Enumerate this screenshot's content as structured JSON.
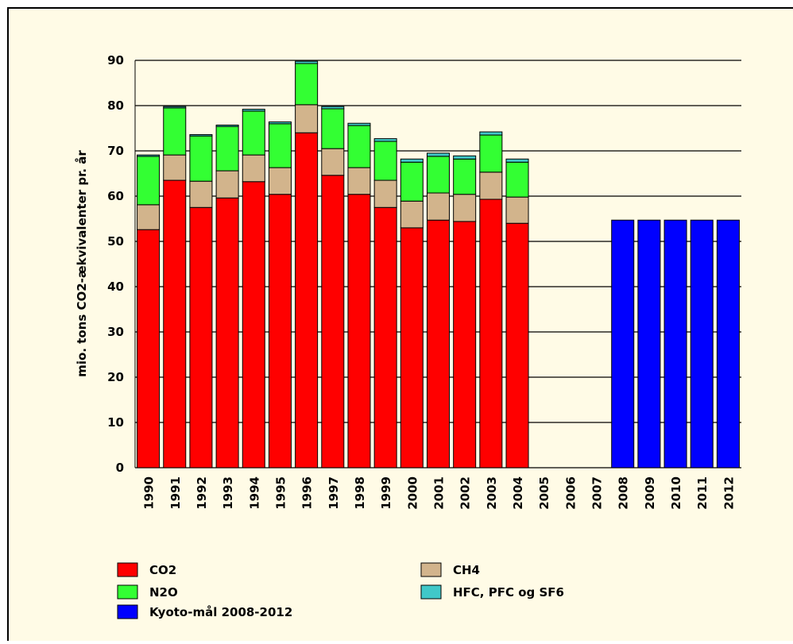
{
  "chart_data": {
    "type": "bar",
    "stacked": true,
    "y_label": "mio. tons CO2-ækvivalenter pr. år",
    "categories": [
      "1990",
      "1991",
      "1992",
      "1993",
      "1994",
      "1995",
      "1996",
      "1997",
      "1998",
      "1999",
      "2000",
      "2001",
      "2002",
      "2003",
      "2004",
      "2005",
      "2006",
      "2007",
      "2008",
      "2009",
      "2010",
      "2011",
      "2012"
    ],
    "series": [
      {
        "name": "CO2",
        "color": "#ff0000",
        "values": [
          52.6,
          63.5,
          57.5,
          59.6,
          63.2,
          60.4,
          74.0,
          64.6,
          60.4,
          57.5,
          53.0,
          54.7,
          54.4,
          59.3,
          54.0,
          null,
          null,
          null,
          null,
          null,
          null,
          null,
          null
        ]
      },
      {
        "name": "CH4",
        "color": "#d2b48c",
        "values": [
          5.5,
          5.6,
          5.8,
          6.0,
          5.9,
          5.9,
          6.2,
          5.9,
          5.9,
          6.0,
          5.9,
          6.0,
          6.0,
          6.0,
          5.8,
          null,
          null,
          null,
          null,
          null,
          null,
          null,
          null
        ]
      },
      {
        "name": "N2O",
        "color": "#33ff33",
        "values": [
          10.7,
          10.4,
          10.0,
          9.8,
          9.7,
          9.7,
          9.1,
          8.8,
          9.3,
          8.6,
          8.6,
          8.1,
          7.8,
          8.2,
          7.7,
          null,
          null,
          null,
          null,
          null,
          null,
          null,
          null
        ]
      },
      {
        "name": "HFC, PFC og SF6",
        "color": "#40c8c8",
        "values": [
          0.3,
          0.3,
          0.3,
          0.3,
          0.4,
          0.4,
          0.5,
          0.5,
          0.5,
          0.6,
          0.7,
          0.7,
          0.7,
          0.7,
          0.7,
          null,
          null,
          null,
          null,
          null,
          null,
          null,
          null
        ]
      },
      {
        "name": "Kyoto-mål 2008-2012",
        "color": "#0000ff",
        "values": [
          null,
          null,
          null,
          null,
          null,
          null,
          null,
          null,
          null,
          null,
          null,
          null,
          null,
          null,
          null,
          null,
          null,
          null,
          54.7,
          54.7,
          54.7,
          54.7,
          54.7
        ]
      }
    ],
    "ylim": [
      0,
      90
    ],
    "yticks": [
      0,
      10,
      20,
      30,
      40,
      50,
      60,
      70,
      80,
      90
    ],
    "grid": true,
    "background": "#fffbe6"
  }
}
